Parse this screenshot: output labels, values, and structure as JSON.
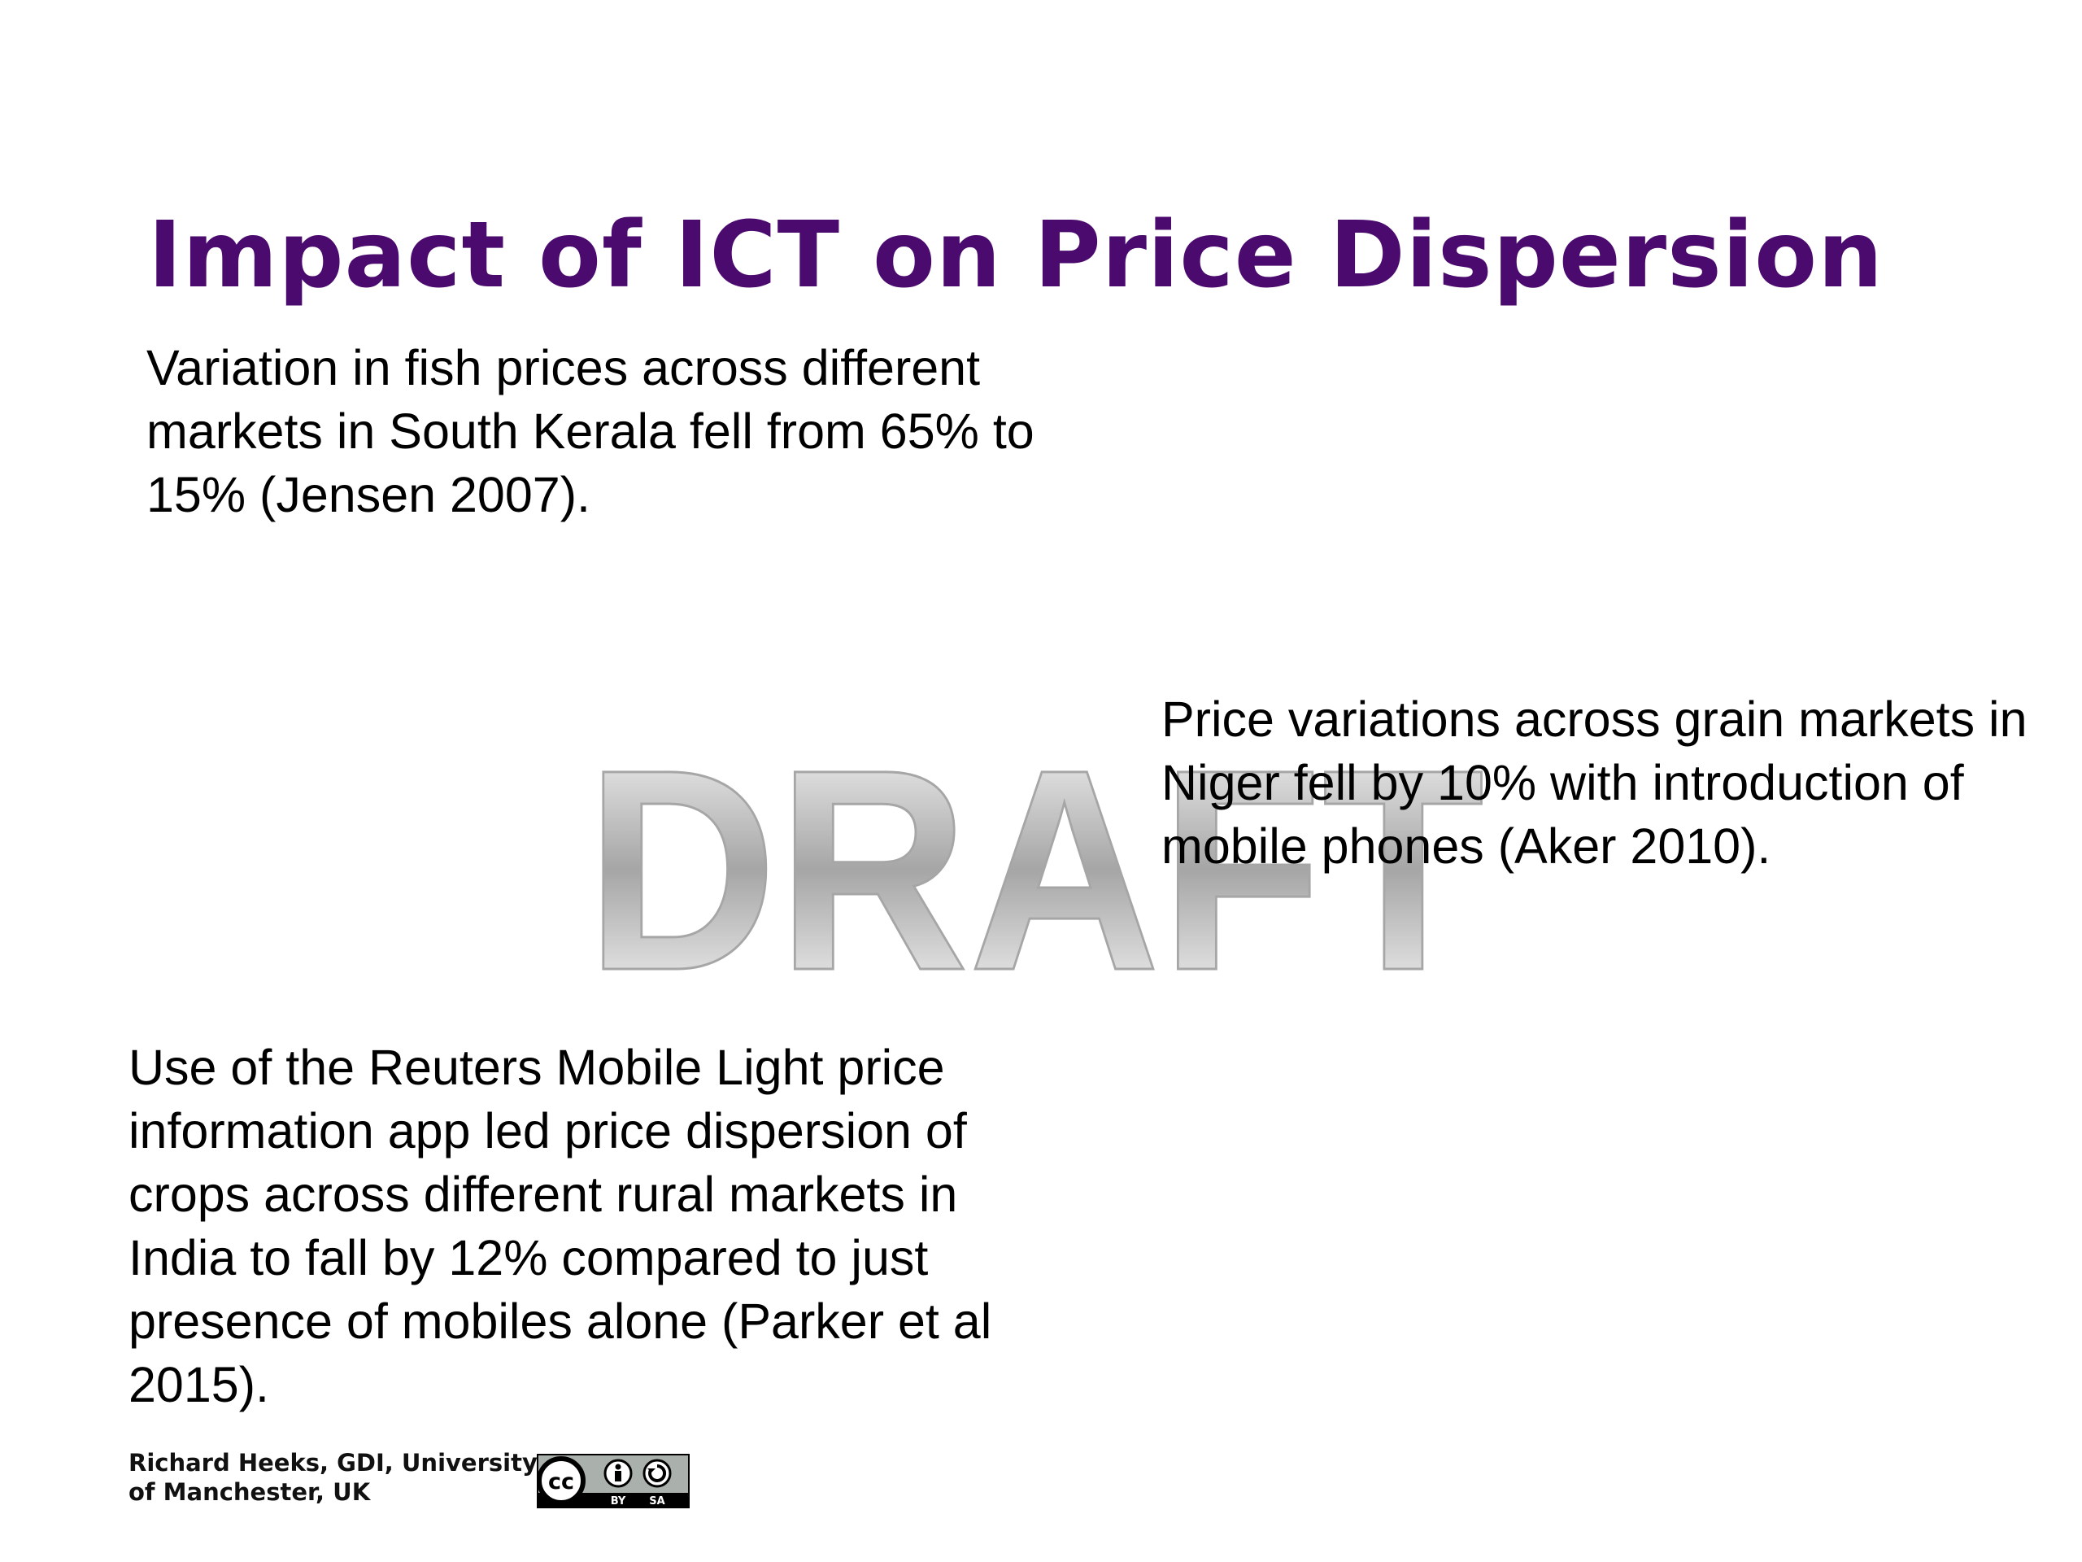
{
  "slide": {
    "title": "Impact of ICT on Price Dispersion",
    "title_color": "#4b0a6e",
    "text_blocks": [
      "Variation in fish prices across different markets in South Kerala fell from 65% to 15% (Jensen 2007).",
      "Price variations across grain markets in Niger fell by 10% with introduction of mobile phones (Aker 2010).",
      "Use of the Reuters Mobile Light price information app led price dispersion of crops across different rural markets in India to fall by 12% compared to just presence of mobiles alone (Parker et al 2015)."
    ],
    "watermark": "DRAFT",
    "credit": "Richard Heeks, GDI, University\nof Manchester, UK",
    "license_badge": {
      "icon": "cc-by-sa-icon",
      "labels": [
        "cc",
        "BY",
        "SA"
      ]
    }
  }
}
